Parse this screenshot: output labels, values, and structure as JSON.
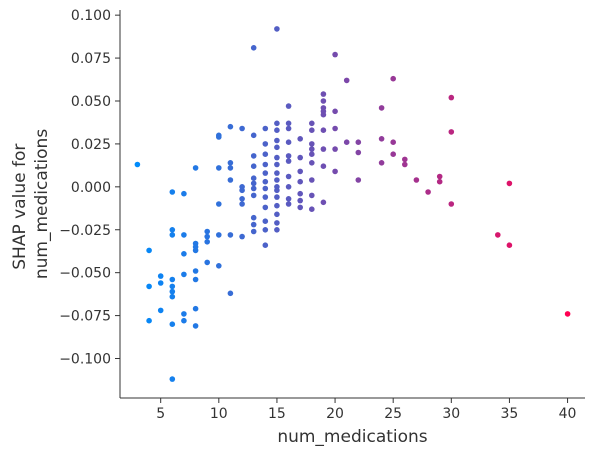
{
  "chart_data": {
    "type": "scatter",
    "xlabel": "num_medications",
    "ylabel_lines": [
      "SHAP value for",
      "num_medications"
    ],
    "xlim": [
      1.5,
      41.5
    ],
    "ylim": [
      -0.123,
      0.103
    ],
    "x_ticks": [
      5,
      10,
      15,
      20,
      25,
      30,
      35,
      40
    ],
    "y_ticks": [
      -0.1,
      -0.075,
      -0.05,
      -0.025,
      0.0,
      0.025,
      0.05,
      0.075,
      0.1
    ],
    "x_tick_labels": [
      "5",
      "10",
      "15",
      "20",
      "25",
      "30",
      "35",
      "40"
    ],
    "y_tick_labels": [
      "−0.100",
      "−0.075",
      "−0.050",
      "−0.025",
      "0.000",
      "0.025",
      "0.050",
      "0.075",
      "0.100"
    ],
    "grid": false,
    "color_scale": [
      "#008bfb",
      "#ff0052"
    ],
    "color_range": [
      3,
      40
    ],
    "points": [
      [
        3,
        0.013
      ],
      [
        4,
        -0.037
      ],
      [
        4,
        -0.058
      ],
      [
        4,
        -0.078
      ],
      [
        5,
        -0.052
      ],
      [
        5,
        -0.056
      ],
      [
        5,
        -0.072
      ],
      [
        6,
        -0.003
      ],
      [
        6,
        -0.025
      ],
      [
        6,
        -0.028
      ],
      [
        6,
        -0.054
      ],
      [
        6,
        -0.058
      ],
      [
        6,
        -0.061
      ],
      [
        6,
        -0.064
      ],
      [
        6,
        -0.08
      ],
      [
        6,
        -0.112
      ],
      [
        7,
        -0.004
      ],
      [
        7,
        -0.028
      ],
      [
        7,
        -0.039
      ],
      [
        7,
        -0.051
      ],
      [
        7,
        -0.074
      ],
      [
        7,
        -0.078
      ],
      [
        8,
        0.011
      ],
      [
        8,
        -0.033
      ],
      [
        8,
        -0.035
      ],
      [
        8,
        -0.037
      ],
      [
        8,
        -0.049
      ],
      [
        8,
        -0.054
      ],
      [
        8,
        -0.071
      ],
      [
        8,
        -0.081
      ],
      [
        9,
        -0.026
      ],
      [
        9,
        -0.029
      ],
      [
        9,
        -0.032
      ],
      [
        9,
        -0.044
      ],
      [
        10,
        0.03
      ],
      [
        10,
        0.029
      ],
      [
        10,
        0.011
      ],
      [
        10,
        -0.01
      ],
      [
        10,
        -0.028
      ],
      [
        10,
        -0.046
      ],
      [
        11,
        0.035
      ],
      [
        11,
        0.014
      ],
      [
        11,
        0.011
      ],
      [
        11,
        0.004
      ],
      [
        11,
        -0.028
      ],
      [
        11,
        -0.062
      ],
      [
        12,
        0.034
      ],
      [
        12,
        0.0
      ],
      [
        12,
        -0.002
      ],
      [
        12,
        -0.007
      ],
      [
        12,
        -0.01
      ],
      [
        12,
        -0.029
      ],
      [
        13,
        0.081
      ],
      [
        13,
        0.03
      ],
      [
        13,
        0.018
      ],
      [
        13,
        0.012
      ],
      [
        13,
        0.005
      ],
      [
        13,
        0.002
      ],
      [
        13,
        -0.001
      ],
      [
        13,
        -0.005
      ],
      [
        13,
        -0.018
      ],
      [
        13,
        -0.022
      ],
      [
        13,
        -0.026
      ],
      [
        14,
        0.034
      ],
      [
        14,
        0.025
      ],
      [
        14,
        0.019
      ],
      [
        14,
        0.013
      ],
      [
        14,
        0.008
      ],
      [
        14,
        0.003
      ],
      [
        14,
        -0.001
      ],
      [
        14,
        -0.006
      ],
      [
        14,
        -0.012
      ],
      [
        14,
        -0.02
      ],
      [
        14,
        -0.025
      ],
      [
        14,
        -0.034
      ],
      [
        15,
        0.092
      ],
      [
        15,
        0.037
      ],
      [
        15,
        0.033
      ],
      [
        15,
        0.027
      ],
      [
        15,
        0.023
      ],
      [
        15,
        0.017
      ],
      [
        15,
        0.013
      ],
      [
        15,
        0.008
      ],
      [
        15,
        0.004
      ],
      [
        15,
        0.0
      ],
      [
        15,
        -0.002
      ],
      [
        15,
        -0.006
      ],
      [
        15,
        -0.011
      ],
      [
        15,
        -0.016
      ],
      [
        15,
        -0.021
      ],
      [
        15,
        -0.025
      ],
      [
        16,
        0.047
      ],
      [
        16,
        0.037
      ],
      [
        16,
        0.034
      ],
      [
        16,
        0.026
      ],
      [
        16,
        0.018
      ],
      [
        16,
        0.015
      ],
      [
        16,
        0.006
      ],
      [
        16,
        0.0
      ],
      [
        16,
        -0.007
      ],
      [
        16,
        -0.01
      ],
      [
        17,
        0.028
      ],
      [
        17,
        0.017
      ],
      [
        17,
        0.009
      ],
      [
        17,
        0.003
      ],
      [
        17,
        -0.004
      ],
      [
        17,
        -0.008
      ],
      [
        17,
        -0.012
      ],
      [
        18,
        0.037
      ],
      [
        18,
        0.033
      ],
      [
        18,
        0.025
      ],
      [
        18,
        0.022
      ],
      [
        18,
        0.019
      ],
      [
        18,
        0.014
      ],
      [
        18,
        0.004
      ],
      [
        18,
        -0.005
      ],
      [
        18,
        -0.013
      ],
      [
        19,
        0.054
      ],
      [
        19,
        0.05
      ],
      [
        19,
        0.046
      ],
      [
        19,
        0.044
      ],
      [
        19,
        0.042
      ],
      [
        19,
        0.033
      ],
      [
        19,
        0.022
      ],
      [
        19,
        0.012
      ],
      [
        19,
        -0.009
      ],
      [
        20,
        0.077
      ],
      [
        20,
        0.044
      ],
      [
        20,
        0.034
      ],
      [
        20,
        0.022
      ],
      [
        20,
        0.009
      ],
      [
        21,
        0.062
      ],
      [
        21,
        0.026
      ],
      [
        22,
        0.026
      ],
      [
        22,
        0.02
      ],
      [
        22,
        0.004
      ],
      [
        24,
        0.046
      ],
      [
        24,
        0.028
      ],
      [
        24,
        0.014
      ],
      [
        25,
        0.063
      ],
      [
        25,
        0.026
      ],
      [
        25,
        0.019
      ],
      [
        26,
        0.016
      ],
      [
        26,
        0.013
      ],
      [
        27,
        0.004
      ],
      [
        28,
        -0.003
      ],
      [
        29,
        0.006
      ],
      [
        29,
        0.003
      ],
      [
        30,
        0.052
      ],
      [
        30,
        0.032
      ],
      [
        30,
        -0.01
      ],
      [
        34,
        -0.028
      ],
      [
        35,
        0.002
      ],
      [
        35,
        -0.034
      ],
      [
        40,
        -0.074
      ]
    ]
  }
}
